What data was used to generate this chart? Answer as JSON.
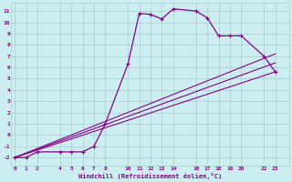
{
  "xlabel": "Windchill (Refroidissement éolien,°C)",
  "background_color": "#cceef0",
  "grid_color": "#aacccc",
  "line_color": "#880088",
  "x_ticks": [
    0,
    1,
    2,
    4,
    5,
    6,
    7,
    8,
    10,
    11,
    12,
    13,
    14,
    16,
    17,
    18,
    19,
    20,
    22,
    23
  ],
  "y_ticks": [
    -2,
    -1,
    0,
    1,
    2,
    3,
    4,
    5,
    6,
    7,
    8,
    9,
    10,
    11
  ],
  "xlim": [
    -0.3,
    24.2
  ],
  "ylim": [
    -2.7,
    11.7
  ],
  "line1_x": [
    0,
    1,
    2,
    4,
    5,
    6,
    7,
    8,
    10,
    11,
    12,
    13,
    14,
    16,
    17,
    18,
    19,
    20,
    22,
    23
  ],
  "line1_y": [
    -2.0,
    -2.0,
    -1.5,
    -1.5,
    -1.5,
    -1.5,
    -1.0,
    1.0,
    6.3,
    10.8,
    10.7,
    10.3,
    11.2,
    11.0,
    10.4,
    8.8,
    8.8,
    8.8,
    7.0,
    5.6
  ],
  "line2_x": [
    0,
    23
  ],
  "line2_y": [
    -2.0,
    5.6
  ],
  "line3_x": [
    0,
    23
  ],
  "line3_y": [
    -2.0,
    6.4
  ],
  "line4_x": [
    0,
    23
  ],
  "line4_y": [
    -2.0,
    7.2
  ]
}
